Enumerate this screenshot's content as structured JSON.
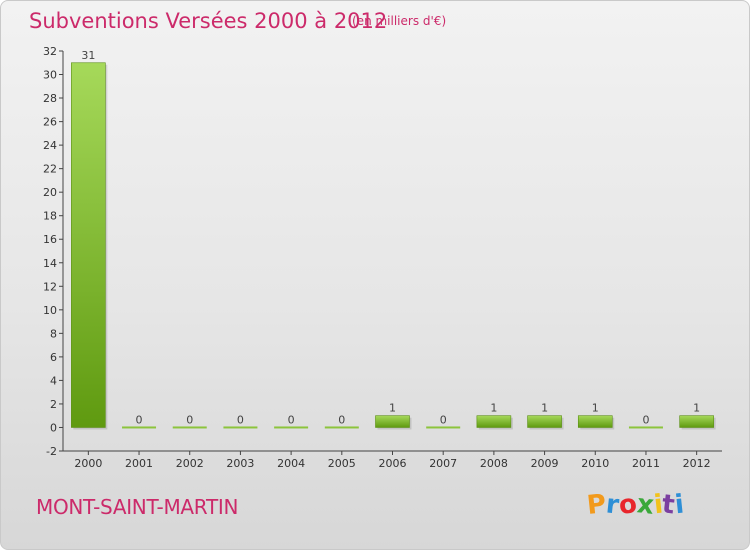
{
  "header": {
    "title": "Subventions Versées 2000 à 2012",
    "unit": "(en milliers d'€)"
  },
  "footer": {
    "commune": "MONT-SAINT-MARTIN",
    "logo_text": "Proxiti",
    "logo_colors": [
      "#f29a1c",
      "#2e8fd6",
      "#e8262c",
      "#3aa83a",
      "#f2c21c",
      "#7b3fa0",
      "#2e8fd6"
    ]
  },
  "colors": {
    "bar_light": "#a6d95a",
    "bar_dark": "#5f9a10",
    "accent": "#cc2a6a"
  },
  "chart_data": {
    "type": "bar",
    "categories": [
      "2000",
      "2001",
      "2002",
      "2003",
      "2004",
      "2005",
      "2006",
      "2007",
      "2008",
      "2009",
      "2010",
      "2011",
      "2012"
    ],
    "values": [
      31,
      0,
      0,
      0,
      0,
      0,
      1,
      0,
      1,
      1,
      1,
      0,
      1
    ],
    "data_labels": [
      "31",
      "0",
      "0",
      "0",
      "0",
      "0",
      "1",
      "0",
      "1",
      "1",
      "1",
      "0",
      "1"
    ],
    "ylim": [
      -2,
      32
    ],
    "yticks": [
      -2,
      0,
      2,
      4,
      6,
      8,
      10,
      12,
      14,
      16,
      18,
      20,
      22,
      24,
      26,
      28,
      30,
      32
    ],
    "grid": false,
    "title": "Subventions Versées 2000 à 2012",
    "xlabel": "",
    "ylabel": ""
  }
}
